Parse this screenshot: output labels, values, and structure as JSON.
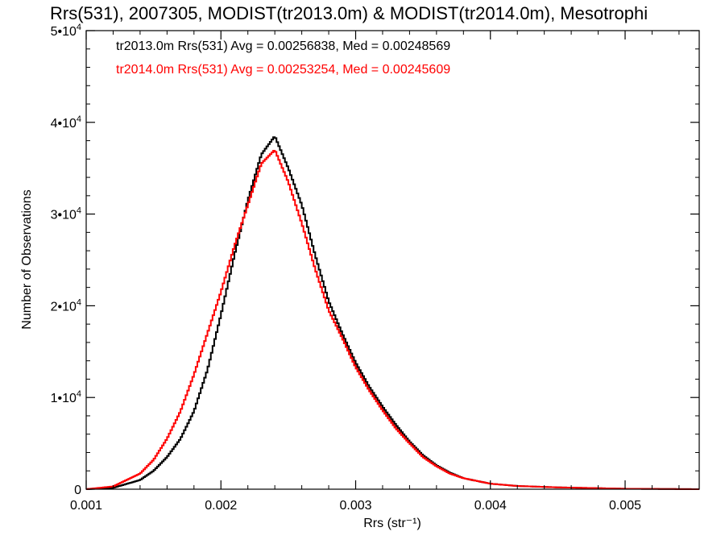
{
  "chart_data": {
    "type": "line",
    "title": "Rrs(531), 2007305, MODIST(tr2013.0m) & MODIST(tr2014.0m), Mesotrophi",
    "xlabel": "Rrs (str⁻¹)",
    "ylabel": "Number of Observations",
    "xlim": [
      0.001,
      0.00555
    ],
    "ylim": [
      0,
      50000
    ],
    "x_ticks": [
      {
        "value": 0.001,
        "label": "0.001"
      },
      {
        "value": 0.002,
        "label": "0.002"
      },
      {
        "value": 0.003,
        "label": "0.003"
      },
      {
        "value": 0.004,
        "label": "0.004"
      },
      {
        "value": 0.005,
        "label": "0.005"
      }
    ],
    "y_ticks": [
      {
        "value": 0,
        "label": "0",
        "exp": ""
      },
      {
        "value": 10000,
        "label": "1•10",
        "exp": "4"
      },
      {
        "value": 20000,
        "label": "2•10",
        "exp": "4"
      },
      {
        "value": 30000,
        "label": "3•10",
        "exp": "4"
      },
      {
        "value": 40000,
        "label": "4•10",
        "exp": "4"
      },
      {
        "value": 50000,
        "label": "5•10",
        "exp": "4"
      }
    ],
    "grid": false,
    "legend_position": "top-left",
    "series": [
      {
        "name": "tr2013.0m Rrs(531) Avg = 0.00256838, Med = 0.00248569",
        "color": "#000000",
        "x": [
          0.001,
          0.0012,
          0.0014,
          0.0015,
          0.0016,
          0.0017,
          0.0018,
          0.0019,
          0.002,
          0.0021,
          0.0022,
          0.0023,
          0.0024,
          0.0025,
          0.0026,
          0.0027,
          0.0028,
          0.0029,
          0.003,
          0.0031,
          0.0032,
          0.0033,
          0.0034,
          0.0035,
          0.0036,
          0.0037,
          0.0038,
          0.004,
          0.0042,
          0.0045,
          0.005,
          0.00555
        ],
        "y": [
          0,
          150,
          1000,
          2000,
          3500,
          5500,
          8500,
          13000,
          19000,
          25500,
          31500,
          36500,
          38500,
          35000,
          31000,
          25500,
          20500,
          17000,
          13800,
          11200,
          9000,
          7000,
          5200,
          3700,
          2600,
          1800,
          1200,
          600,
          350,
          200,
          50,
          0
        ]
      },
      {
        "name": "tr2014.0m Rrs(531) Avg = 0.00253254, Med = 0.00245609",
        "color": "#ff0000",
        "x": [
          0.001,
          0.0012,
          0.0014,
          0.0015,
          0.0016,
          0.0017,
          0.0018,
          0.0019,
          0.002,
          0.0021,
          0.0022,
          0.0023,
          0.0024,
          0.0025,
          0.0026,
          0.0027,
          0.0028,
          0.0029,
          0.003,
          0.0031,
          0.0032,
          0.0033,
          0.0034,
          0.0035,
          0.0036,
          0.0037,
          0.0038,
          0.004,
          0.0042,
          0.0045,
          0.005,
          0.00555
        ],
        "y": [
          0,
          300,
          1700,
          3200,
          5500,
          8500,
          12500,
          17000,
          21500,
          26500,
          31000,
          35500,
          37000,
          33500,
          29000,
          24000,
          19500,
          16500,
          13300,
          10800,
          8600,
          6600,
          5000,
          3500,
          2500,
          1700,
          1200,
          600,
          350,
          200,
          50,
          0
        ]
      }
    ]
  }
}
